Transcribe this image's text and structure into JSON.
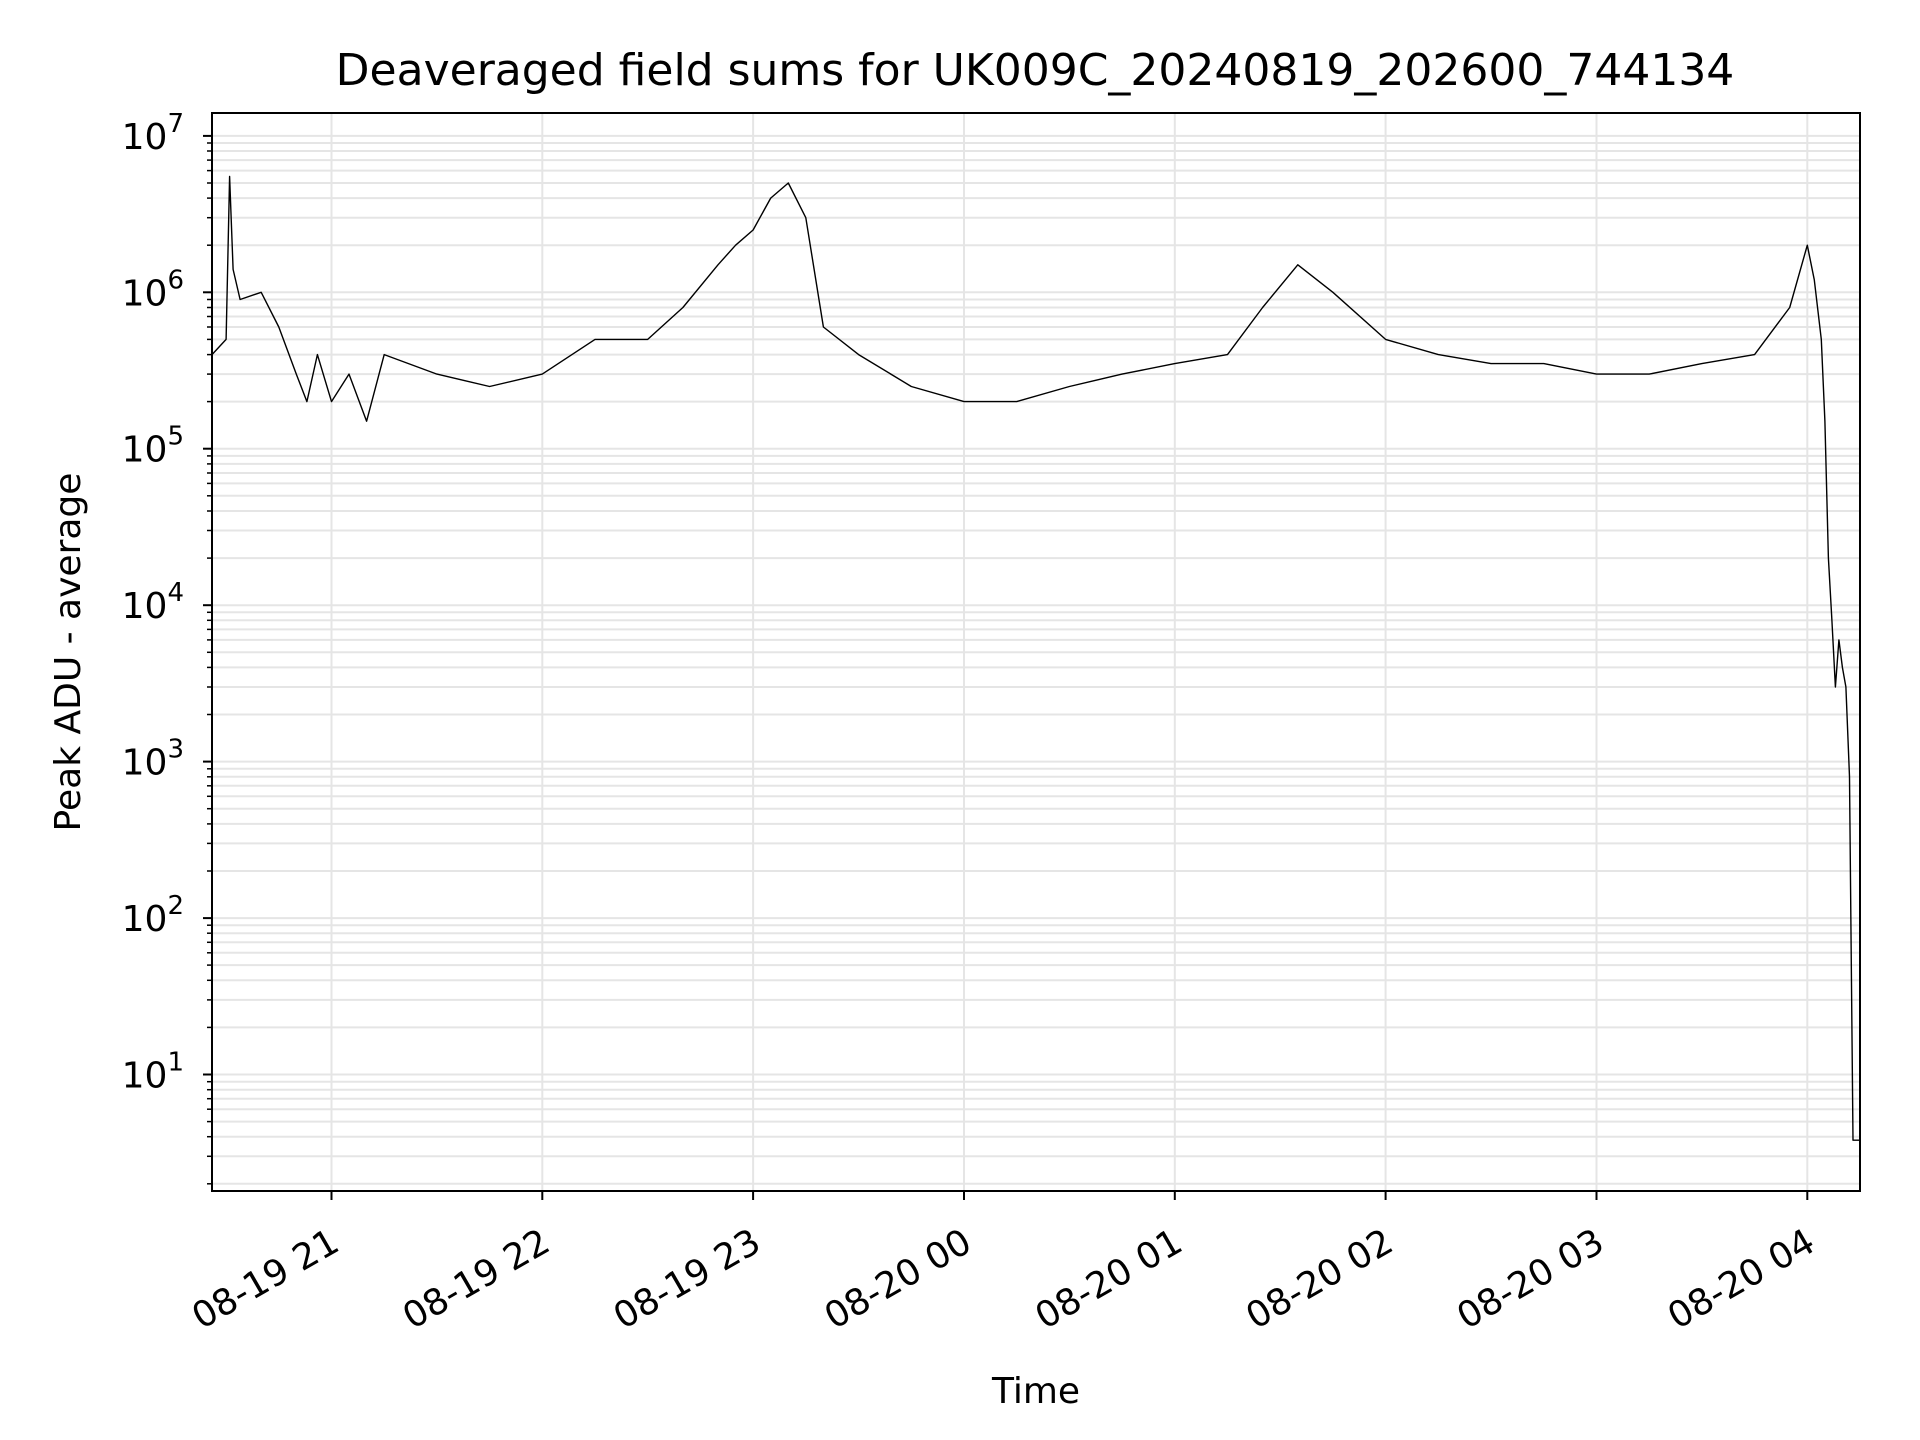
{
  "chart_data": {
    "type": "line",
    "title": "Deaveraged field sums for UK009C_20240819_202600_744134",
    "xlabel": "Time",
    "ylabel": "Peak ADU - average",
    "yscale": "log",
    "ylim": [
      1.8,
      14000000
    ],
    "xlim": [
      "2024-08-19 20:26:00",
      "2024-08-20 04:15:00"
    ],
    "grid": true,
    "line_color": "#000000",
    "grid_color": "#e5e5e5",
    "x_ticks": [
      {
        "value": "2024-08-19 21:00",
        "label": "08-19 21"
      },
      {
        "value": "2024-08-19 22:00",
        "label": "08-19 22"
      },
      {
        "value": "2024-08-19 23:00",
        "label": "08-19 23"
      },
      {
        "value": "2024-08-20 00:00",
        "label": "08-20 00"
      },
      {
        "value": "2024-08-20 01:00",
        "label": "08-20 01"
      },
      {
        "value": "2024-08-20 02:00",
        "label": "08-20 02"
      },
      {
        "value": "2024-08-20 03:00",
        "label": "08-20 03"
      },
      {
        "value": "2024-08-20 04:00",
        "label": "08-20 04"
      }
    ],
    "y_ticks": [
      {
        "value": 10,
        "base": "10",
        "exp": "1"
      },
      {
        "value": 100,
        "base": "10",
        "exp": "2"
      },
      {
        "value": 1000,
        "base": "10",
        "exp": "3"
      },
      {
        "value": 10000,
        "base": "10",
        "exp": "4"
      },
      {
        "value": 100000,
        "base": "10",
        "exp": "5"
      },
      {
        "value": 1000000,
        "base": "10",
        "exp": "6"
      },
      {
        "value": 10000000,
        "base": "10",
        "exp": "7"
      }
    ],
    "series": [
      {
        "x": [
          "2024-08-19 20:26",
          "2024-08-19 20:30",
          "2024-08-19 20:31",
          "2024-08-19 20:32",
          "2024-08-19 20:34",
          "2024-08-19 20:40",
          "2024-08-19 20:45",
          "2024-08-19 20:50",
          "2024-08-19 20:53",
          "2024-08-19 20:56",
          "2024-08-19 21:00",
          "2024-08-19 21:05",
          "2024-08-19 21:10",
          "2024-08-19 21:15",
          "2024-08-19 21:30",
          "2024-08-19 21:45",
          "2024-08-19 22:00",
          "2024-08-19 22:15",
          "2024-08-19 22:30",
          "2024-08-19 22:40",
          "2024-08-19 22:50",
          "2024-08-19 22:55",
          "2024-08-19 23:00",
          "2024-08-19 23:05",
          "2024-08-19 23:10",
          "2024-08-19 23:15",
          "2024-08-19 23:20",
          "2024-08-19 23:30",
          "2024-08-19 23:45",
          "2024-08-20 00:00",
          "2024-08-20 00:15",
          "2024-08-20 00:30",
          "2024-08-20 00:45",
          "2024-08-20 01:00",
          "2024-08-20 01:15",
          "2024-08-20 01:25",
          "2024-08-20 01:35",
          "2024-08-20 01:45",
          "2024-08-20 02:00",
          "2024-08-20 02:15",
          "2024-08-20 02:30",
          "2024-08-20 02:45",
          "2024-08-20 03:00",
          "2024-08-20 03:15",
          "2024-08-20 03:30",
          "2024-08-20 03:45",
          "2024-08-20 03:55",
          "2024-08-20 04:00",
          "2024-08-20 04:02",
          "2024-08-20 04:04",
          "2024-08-20 04:05",
          "2024-08-20 04:06",
          "2024-08-20 04:07",
          "2024-08-20 04:08",
          "2024-08-20 04:09",
          "2024-08-20 04:10",
          "2024-08-20 04:11",
          "2024-08-20 04:12",
          "2024-08-20 04:13",
          "2024-08-20 04:14",
          "2024-08-20 04:15"
        ],
        "y": [
          400000,
          500000,
          5500000,
          1400000,
          900000,
          1000000,
          600000,
          300000,
          200000,
          400000,
          200000,
          300000,
          150000,
          400000,
          300000,
          250000,
          300000,
          500000,
          500000,
          800000,
          1500000,
          2000000,
          2500000,
          4000000,
          5000000,
          3000000,
          600000,
          400000,
          250000,
          200000,
          200000,
          250000,
          300000,
          350000,
          400000,
          800000,
          1500000,
          1000000,
          500000,
          400000,
          350000,
          350000,
          300000,
          300000,
          350000,
          400000,
          800000,
          2000000,
          1200000,
          500000,
          150000,
          20000,
          8000,
          3000,
          6000,
          4000,
          3000,
          800,
          3.8,
          3.8,
          3.8
        ]
      }
    ]
  }
}
